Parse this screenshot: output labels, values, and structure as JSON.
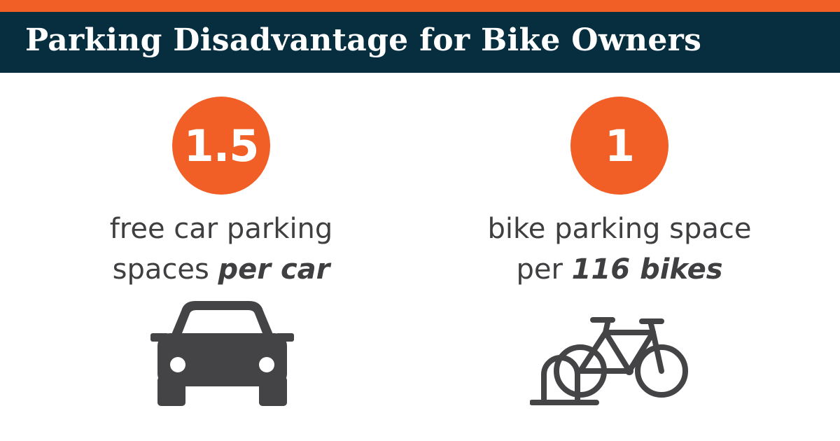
{
  "header": {
    "title": "Parking Disadvantage for Bike Owners"
  },
  "stats": {
    "car": {
      "value": "1.5",
      "caption_line1": "free car parking",
      "caption_line2_plain": "spaces ",
      "caption_line2_emphasis": "per car",
      "icon": "car-icon"
    },
    "bike": {
      "value": "1",
      "caption_line1": "bike parking space",
      "caption_line2_plain": "per ",
      "caption_line2_emphasis": "116 bikes",
      "icon": "bike-rack-icon"
    }
  },
  "colors": {
    "accent": "#f15f26",
    "header_bg": "#062e3e",
    "text": "#3f3f42",
    "icon": "#444447"
  }
}
